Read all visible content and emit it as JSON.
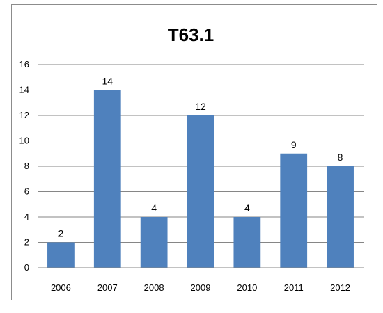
{
  "chart_data": {
    "type": "bar",
    "title": "T63.1",
    "categories": [
      "2006",
      "2007",
      "2008",
      "2009",
      "2010",
      "2011",
      "2012"
    ],
    "values": [
      2,
      14,
      4,
      12,
      4,
      9,
      8
    ],
    "ylim": [
      0,
      16
    ],
    "yticks": [
      0,
      2,
      4,
      6,
      8,
      10,
      12,
      14,
      16
    ],
    "grid": true,
    "legend": "none",
    "bar_color": "#4f81bd"
  }
}
